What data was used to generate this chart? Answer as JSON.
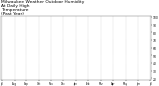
{
  "title": "Milwaukee Weather Outdoor Humidity\nAt Daily High\nTemperature\n(Past Year)",
  "title_fontsize": 3.2,
  "bg_color": "#ffffff",
  "plot_bg": "#ffffff",
  "grid_color": "#888888",
  "n_points": 365,
  "y_min": 18,
  "y_max": 102,
  "y_ticks": [
    20,
    30,
    40,
    50,
    60,
    70,
    80,
    90,
    100
  ],
  "red_color": "#cc0000",
  "blue_color": "#0000cc",
  "marker_size": 0.3,
  "seed": 42,
  "month_ticks": [
    0,
    31,
    59,
    90,
    120,
    151,
    181,
    212,
    243,
    273,
    304,
    334,
    365
  ],
  "month_labels": [
    "Jul",
    "Aug",
    "Sep",
    "Oct",
    "Nov",
    "Dec",
    "Jan",
    "Feb",
    "Mar",
    "Apr",
    "May",
    "Jun",
    "Jul"
  ]
}
